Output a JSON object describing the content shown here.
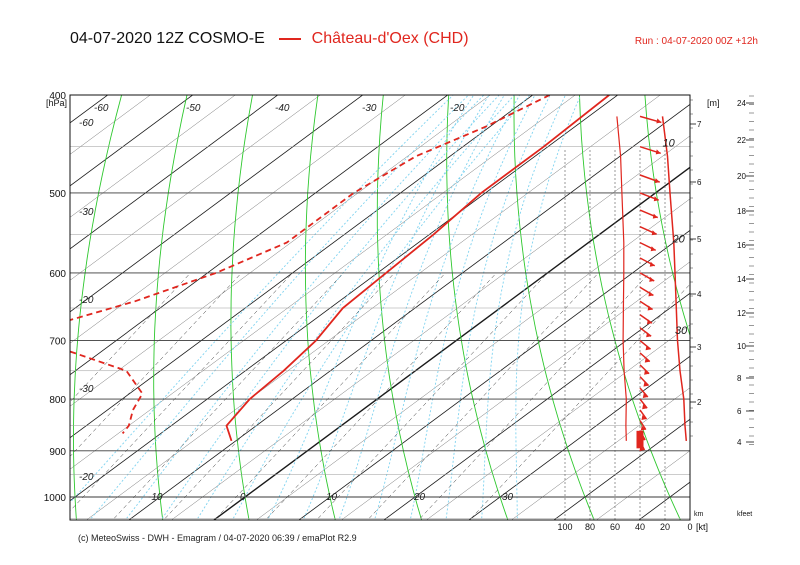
{
  "header": {
    "title": "04-07-2020 12Z COSMO-E",
    "station": "Château-d'Oex (CHD)",
    "run": "Run : 04-07-2020 00Z +12h"
  },
  "footer": {
    "text": "(c) MeteoSwiss - DWH - Emagram / 04-07-2020  06:39 / emaPlot R2.9"
  },
  "colors": {
    "profile": "#e0261e",
    "isotherm": "#222222",
    "dry_adiabat": "#2ec82e",
    "moist_adiabat": "#7fd3f0",
    "isobar": "#555555"
  },
  "chart_data": {
    "type": "line",
    "title": "04-07-2020 12Z COSMO-E",
    "ylabel": "[hPa]",
    "ylim": [
      1000,
      400
    ],
    "yscale": "log",
    "pressure_ticks": [
      "400",
      "500",
      "600",
      "700",
      "800",
      "900",
      "1000"
    ],
    "temperature_labels": [
      "-60",
      "-60",
      "-50",
      "-40",
      "-30",
      "-20",
      "-30",
      "-20",
      "-30",
      "-20",
      "-10",
      "0",
      "10",
      "20",
      "30"
    ],
    "height_axis": {
      "unit": "[m]",
      "ticks": [
        "7",
        "6",
        "5",
        "4",
        "3",
        "2"
      ],
      "bottom_label": "km"
    },
    "kfeet_axis": {
      "unit": "kfeet",
      "ticks": [
        "24",
        "22",
        "20",
        "18",
        "16",
        "14",
        "12",
        "10",
        "8",
        "6",
        "4"
      ]
    },
    "wind_axis": {
      "unit": "[kt]",
      "ticks": [
        "100",
        "80",
        "60",
        "40",
        "20",
        "0"
      ]
    },
    "wind_profile_labels": [
      "10",
      "20",
      "30"
    ],
    "series": [
      {
        "name": "Château-d'Oex (CHD)",
        "kind": "temperature",
        "points": [
          [
            400,
            -21
          ],
          [
            450,
            -20.5
          ],
          [
            500,
            -20.5
          ],
          [
            550,
            -19.5
          ],
          [
            600,
            -19
          ],
          [
            650,
            -18.5
          ],
          [
            700,
            -16.5
          ],
          [
            750,
            -15.5
          ],
          [
            800,
            -15
          ],
          [
            850,
            -13.5
          ],
          [
            880,
            -10.5
          ]
        ]
      },
      {
        "name": "Château-d'Oex (CHD)",
        "kind": "dewpoint",
        "points": [
          [
            400,
            -28
          ],
          [
            430,
            -30.5
          ],
          [
            460,
            -34
          ],
          [
            500,
            -35.5
          ],
          [
            560,
            -35.5
          ],
          [
            600,
            -39
          ],
          [
            640,
            -44
          ],
          [
            670,
            -49
          ],
          [
            700,
            -49.5
          ],
          [
            720,
            -43
          ],
          [
            750,
            -34
          ],
          [
            790,
            -28.5
          ],
          [
            820,
            -27
          ],
          [
            850,
            -25
          ],
          [
            865,
            -24.5
          ]
        ]
      }
    ],
    "wind_speed": [
      [
        420,
        22
      ],
      [
        460,
        18
      ],
      [
        500,
        16
      ],
      [
        560,
        13
      ],
      [
        600,
        12
      ],
      [
        650,
        11
      ],
      [
        700,
        10
      ],
      [
        750,
        8
      ],
      [
        800,
        5
      ],
      [
        850,
        4
      ],
      [
        880,
        3
      ]
    ],
    "wind_barbs": [
      [
        420,
        40
      ],
      [
        450,
        40
      ],
      [
        480,
        38
      ],
      [
        500,
        35
      ],
      [
        520,
        32
      ],
      [
        540,
        28
      ],
      [
        560,
        25
      ],
      [
        580,
        22
      ],
      [
        600,
        22
      ],
      [
        620,
        20
      ],
      [
        640,
        18
      ],
      [
        660,
        17
      ],
      [
        680,
        15
      ],
      [
        700,
        15
      ],
      [
        720,
        13
      ],
      [
        740,
        12
      ],
      [
        760,
        12
      ],
      [
        780,
        11
      ],
      [
        800,
        10
      ],
      [
        820,
        9
      ],
      [
        840,
        8
      ],
      [
        860,
        7
      ],
      [
        880,
        6
      ]
    ]
  }
}
